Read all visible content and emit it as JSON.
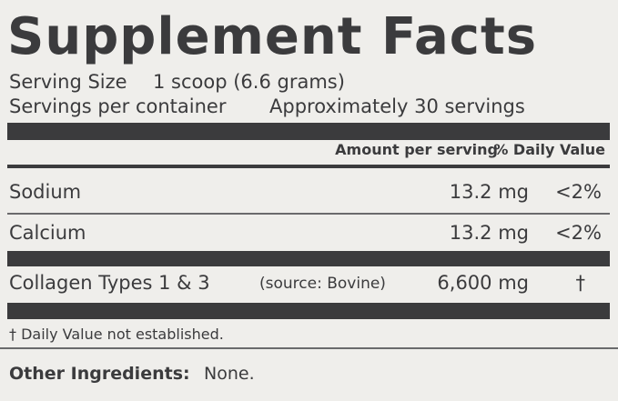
{
  "label": {
    "title": "Supplement Facts",
    "serving_size": {
      "label": "Serving Size",
      "value": "1 scoop (6.6 grams)"
    },
    "servings_per_container": {
      "label": "Servings per container",
      "value": "Approximately 30 servings"
    },
    "columns": {
      "amount": "Amount per serving",
      "daily_value": "% Daily Value"
    },
    "rows": [
      {
        "name": "Sodium",
        "amount": "13.2 mg",
        "daily_value": "<2%"
      },
      {
        "name": "Calcium",
        "amount": "13.2 mg",
        "daily_value": "<2%"
      },
      {
        "name": "Collagen Types 1 & 3",
        "source": "(source: Bovine)",
        "amount": "6,600 mg",
        "daily_value": "†"
      }
    ],
    "footnote": "† Daily Value not established.",
    "other_ingredients": {
      "label": "Other Ingredients:",
      "value": "None."
    }
  }
}
